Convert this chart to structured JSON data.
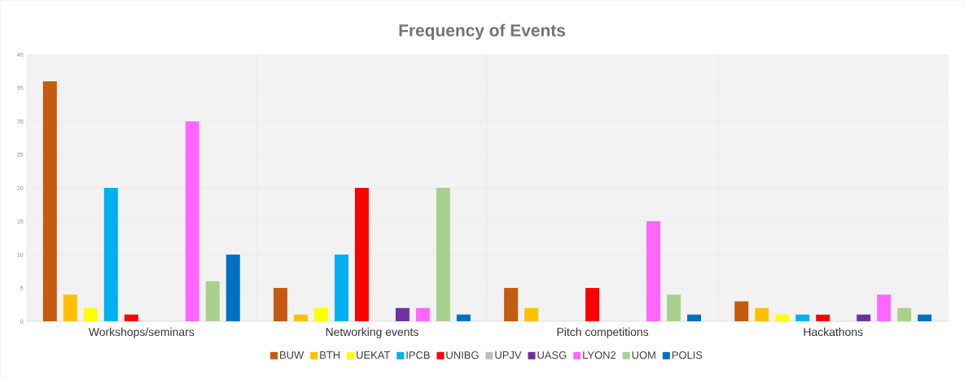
{
  "chart_data": {
    "type": "bar",
    "title": "Frequency of Events",
    "categories": [
      "Workshops/seminars",
      "Networking events",
      "Pitch competitions",
      "Hackathons"
    ],
    "series": [
      {
        "name": "BUW",
        "color": "#c55a11",
        "values": [
          36,
          5,
          5,
          3
        ]
      },
      {
        "name": "BTH",
        "color": "#ffc000",
        "values": [
          4,
          1,
          2,
          2
        ]
      },
      {
        "name": "UEKAT",
        "color": "#ffff00",
        "values": [
          2,
          2,
          0,
          1
        ]
      },
      {
        "name": "IPCB",
        "color": "#00b0f0",
        "values": [
          20,
          10,
          0,
          1
        ]
      },
      {
        "name": "UNIBG",
        "color": "#ff0000",
        "values": [
          1,
          20,
          5,
          1
        ]
      },
      {
        "name": "UPJV",
        "color": "#bfbfbf",
        "values": [
          0,
          0,
          0,
          0
        ]
      },
      {
        "name": "UASG",
        "color": "#7030a0",
        "values": [
          0,
          2,
          0,
          1
        ]
      },
      {
        "name": "LYON2",
        "color": "#ff66ff",
        "values": [
          30,
          2,
          15,
          4
        ]
      },
      {
        "name": "UOM",
        "color": "#a9d18e",
        "values": [
          6,
          20,
          4,
          2
        ]
      },
      {
        "name": "POLIS",
        "color": "#0070c0",
        "values": [
          10,
          1,
          1,
          1
        ]
      }
    ],
    "ylim": [
      0,
      40
    ],
    "yticks": [
      0,
      5,
      10,
      15,
      20,
      25,
      30,
      35,
      40
    ],
    "grid": true,
    "legend": "bottom"
  }
}
